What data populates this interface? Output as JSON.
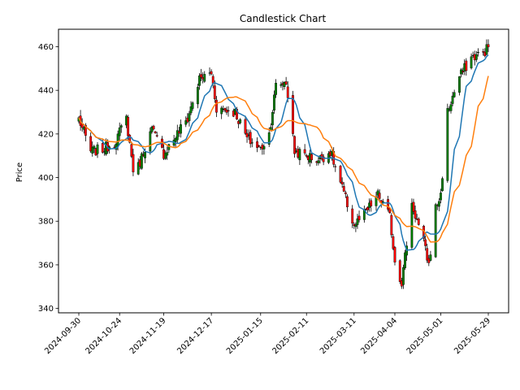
{
  "chart_data": {
    "type": "candlestick",
    "title": "Candlestick Chart",
    "xlabel": "",
    "ylabel": "Price",
    "ylim": [
      338,
      468
    ],
    "yticks": [
      340,
      360,
      380,
      400,
      420,
      440,
      460
    ],
    "xticks": [
      "2024-09-30",
      "2024-10-24",
      "2024-11-19",
      "2024-12-17",
      "2025-01-15",
      "2025-02-11",
      "2025-03-11",
      "2025-04-04",
      "2025-05-01",
      "2025-05-29"
    ],
    "grid": false,
    "colors": {
      "up": "#008000",
      "down": "#ff0000",
      "ma_short": "#1f77b4",
      "ma_long": "#ff7f0e"
    },
    "close_anchors": [
      [
        "2024-09-30",
        427
      ],
      [
        "2024-10-07",
        412
      ],
      [
        "2024-10-14",
        413
      ],
      [
        "2024-10-21",
        416
      ],
      [
        "2024-10-28",
        427
      ],
      [
        "2024-11-01",
        404
      ],
      [
        "2024-11-04",
        405
      ],
      [
        "2024-11-08",
        414
      ],
      [
        "2024-11-12",
        422
      ],
      [
        "2024-11-19",
        411
      ],
      [
        "2024-11-26",
        419
      ],
      [
        "2024-12-03",
        427
      ],
      [
        "2024-12-10",
        445
      ],
      [
        "2024-12-17",
        448
      ],
      [
        "2024-12-20",
        432
      ],
      [
        "2024-12-31",
        430
      ],
      [
        "2025-01-07",
        418
      ],
      [
        "2025-01-15",
        413
      ],
      [
        "2025-01-20",
        420
      ],
      [
        "2025-01-24",
        442
      ],
      [
        "2025-01-30",
        444
      ],
      [
        "2025-02-04",
        412
      ],
      [
        "2025-02-11",
        410
      ],
      [
        "2025-02-18",
        408
      ],
      [
        "2025-02-25",
        412
      ],
      [
        "2025-03-04",
        395
      ],
      [
        "2025-03-11",
        378
      ],
      [
        "2025-03-18",
        384
      ],
      [
        "2025-03-25",
        392
      ],
      [
        "2025-04-01",
        382
      ],
      [
        "2025-04-04",
        362
      ],
      [
        "2025-04-08",
        352
      ],
      [
        "2025-04-14",
        388
      ],
      [
        "2025-04-21",
        370
      ],
      [
        "2025-04-24",
        360
      ],
      [
        "2025-04-28",
        386
      ],
      [
        "2025-05-01",
        392
      ],
      [
        "2025-05-05",
        430
      ],
      [
        "2025-05-12",
        446
      ],
      [
        "2025-05-19",
        455
      ],
      [
        "2025-05-26",
        457
      ],
      [
        "2025-05-29",
        460
      ]
    ]
  }
}
